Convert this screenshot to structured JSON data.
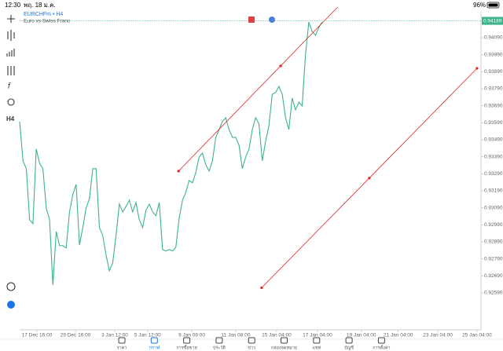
{
  "status_bar": {
    "time": "12:30",
    "date": "พฤ. 18 ม.ค.",
    "battery": "96%"
  },
  "symbol": {
    "name": "EURCHFm • H4",
    "description": "Euro vs Swiss Franc"
  },
  "toolbar": {
    "timeframe": "H4"
  },
  "nav": {
    "items": [
      "ราคา",
      "กราฟ",
      "การซื้อขาย",
      "ประวัติ",
      "ข่าว",
      "กล่องจดหมาย",
      "แชท",
      "บัญชี",
      "การตั้งค่า"
    ],
    "active": 1
  },
  "chart_data": {
    "type": "line",
    "x": [
      0,
      1,
      2,
      3,
      4,
      5,
      6,
      7,
      8,
      9,
      10,
      11,
      12,
      13,
      14,
      15,
      16,
      17,
      18,
      19,
      20,
      21,
      22,
      23,
      24,
      25,
      26,
      27,
      28,
      29,
      30,
      31,
      32,
      33,
      34,
      35,
      36,
      37,
      38,
      39,
      40,
      41,
      42,
      43,
      44,
      45,
      46,
      47,
      48,
      49,
      50,
      51,
      52,
      53,
      54,
      55,
      56,
      57,
      58,
      59,
      60,
      61,
      62,
      63,
      64,
      65,
      66,
      67,
      68,
      69,
      70,
      71,
      72,
      73,
      74,
      75,
      76,
      77,
      78,
      79,
      80,
      81,
      82,
      83,
      84,
      85,
      86,
      87,
      88,
      89,
      90,
      91
    ],
    "series": [
      {
        "color": "#3cb38a",
        "values": [
          0.93597,
          0.93366,
          0.9332,
          0.9302,
          0.92997,
          0.93435,
          0.93352,
          0.9332,
          0.93089,
          0.9302,
          0.92637,
          0.92951,
          0.92868,
          0.92868,
          0.92854,
          0.93066,
          0.93168,
          0.93228,
          0.92872,
          0.92974,
          0.93089,
          0.93145,
          0.9332,
          0.9332,
          0.92974,
          0.92928,
          0.92812,
          0.9272,
          0.92766,
          0.92928,
          0.93112,
          0.93066,
          0.93098,
          0.93135,
          0.93066,
          0.93121,
          0.9302,
          0.92974,
          0.93075,
          0.93112,
          0.93066,
          0.93043,
          0.93121,
          0.92845,
          0.92836,
          0.92845,
          0.92836,
          0.92859,
          0.93029,
          0.93135,
          0.93181,
          0.93251,
          0.93237,
          0.93297,
          0.93389,
          0.93412,
          0.93343,
          0.93306,
          0.93366,
          0.93504,
          0.9355,
          0.93597,
          0.9362,
          0.9355,
          0.93504,
          0.93504,
          0.93458,
          0.9332,
          0.93389,
          0.93435,
          0.9355,
          0.9362,
          0.93583,
          0.93366,
          0.93481,
          0.93574,
          0.93758,
          0.93767,
          0.93804,
          0.93758,
          0.9362,
          0.9355,
          0.93735,
          0.93666,
          0.93712,
          0.93689,
          0.93989,
          0.94182,
          0.94127,
          0.94104,
          0.9415,
          0.94182
        ]
      }
    ],
    "xlim": [
      0,
      138.8
    ],
    "xticks": [
      {
        "value": 5.2,
        "label": "17 Dec 16:00"
      },
      {
        "value": 16.8,
        "label": "29 Dec 16:00"
      },
      {
        "value": 28.6,
        "label": "3 Jan 12:00"
      },
      {
        "value": 38.5,
        "label": "5 Jan 12:00"
      },
      {
        "value": 51.8,
        "label": "9 Jan 08:00"
      },
      {
        "value": 65.0,
        "label": "11 Jan 08:00"
      },
      {
        "value": 77.3,
        "label": "15 Jan 04:00"
      },
      {
        "value": 89.6,
        "label": "17 Jan 04:00"
      },
      {
        "value": 102.8,
        "label": "19 Jan 04:00"
      },
      {
        "value": 113.9,
        "label": "21 Jan 04:00"
      },
      {
        "value": 125.8,
        "label": "23 Jan 04:00"
      },
      {
        "value": 137.6,
        "label": "25 Jan 04:00"
      }
    ],
    "ylim": [
      0.92373,
      0.94247
    ],
    "yticks": [
      {
        "value": 0.9409,
        "label": "0.94090"
      },
      {
        "value": 0.9399,
        "label": "0.93990"
      },
      {
        "value": 0.9389,
        "label": "0.93890"
      },
      {
        "value": 0.9379,
        "label": "0.93790"
      },
      {
        "value": 0.9369,
        "label": "0.93690"
      },
      {
        "value": 0.9359,
        "label": "0.93590"
      },
      {
        "value": 0.9349,
        "label": "0.93490"
      },
      {
        "value": 0.9339,
        "label": "0.93390"
      },
      {
        "value": 0.9329,
        "label": "0.93290"
      },
      {
        "value": 0.9319,
        "label": "0.93190"
      },
      {
        "value": 0.9309,
        "label": "0.93090"
      },
      {
        "value": 0.9299,
        "label": "0.92990"
      },
      {
        "value": 0.9289,
        "label": "0.92890"
      },
      {
        "value": 0.9279,
        "label": "0.92790"
      },
      {
        "value": 0.9269,
        "label": "0.92690"
      },
      {
        "value": 0.9259,
        "label": "0.92590"
      }
    ],
    "last_price": {
      "value": 0.94189,
      "label": "0.94189"
    },
    "trendlines": [
      {
        "color": "#e02020",
        "x": [
          47.8,
          78.5
        ],
        "y": [
          0.93306,
          0.93924
        ]
      },
      {
        "color": "#e02020",
        "x": [
          72.8,
          137.6
        ],
        "y": [
          0.9262,
          0.9391
        ]
      }
    ]
  }
}
